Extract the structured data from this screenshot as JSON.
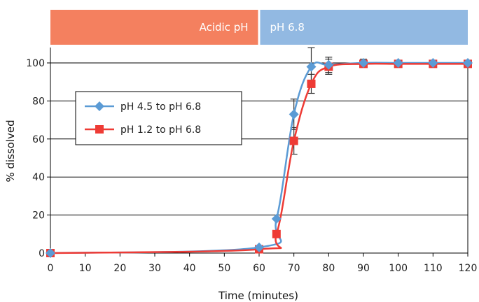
{
  "chart_data": {
    "type": "line",
    "title": "",
    "xlabel": "Time (minutes)",
    "ylabel": "% dissolved",
    "xlim": [
      0,
      120
    ],
    "ylim": [
      0,
      100
    ],
    "xticks": [
      0,
      10,
      20,
      30,
      40,
      50,
      60,
      70,
      80,
      90,
      100,
      110,
      120
    ],
    "yticks": [
      0,
      20,
      40,
      60,
      80,
      100
    ],
    "grid": "horizontal",
    "legend_position": "upper-left",
    "phase_bands": [
      {
        "label": "Acidic pH",
        "x_start": 0,
        "x_end": 60,
        "color": "#f4805f"
      },
      {
        "label": "pH 6.8",
        "x_start": 60,
        "x_end": 120,
        "color": "#92b9e2"
      }
    ],
    "series": [
      {
        "name": "pH 4.5 to pH 6.8",
        "color": "#5b9bd5",
        "marker": "diamond",
        "points": [
          [
            0,
            0
          ],
          [
            60,
            3
          ],
          [
            65,
            18
          ],
          [
            70,
            73
          ],
          [
            75,
            98
          ],
          [
            80,
            99
          ],
          [
            90,
            100
          ],
          [
            100,
            100
          ],
          [
            110,
            100
          ],
          [
            120,
            100
          ]
        ],
        "error": [
          [
            70,
            8
          ],
          [
            75,
            10
          ],
          [
            80,
            4
          ],
          [
            90,
            2
          ]
        ]
      },
      {
        "name": "pH 1.2 to pH 6.8",
        "color": "#ee3b35",
        "marker": "square",
        "points": [
          [
            0,
            0
          ],
          [
            60,
            2
          ],
          [
            65,
            10
          ],
          [
            70,
            59
          ],
          [
            75,
            89
          ],
          [
            80,
            98
          ],
          [
            90,
            99.5
          ],
          [
            100,
            99.5
          ],
          [
            110,
            99.5
          ],
          [
            120,
            99.5
          ]
        ],
        "error": [
          [
            70,
            7
          ],
          [
            75,
            5
          ],
          [
            80,
            4
          ]
        ]
      }
    ]
  }
}
